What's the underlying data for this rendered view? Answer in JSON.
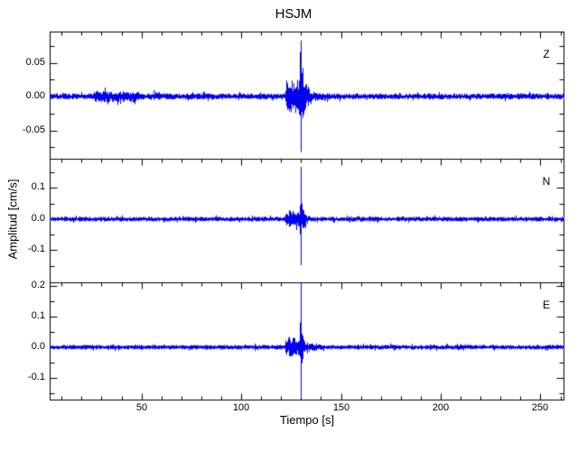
{
  "chart_data": {
    "type": "line",
    "title": "HSJM",
    "xlabel": "Tiempo [s]",
    "ylabel": "Amplitud [cm/s]",
    "trace_color": "#0202ee",
    "frame_color": "#000000",
    "background_color": "#ffffff",
    "x_range": [
      4,
      262
    ],
    "x_minor_step": 10,
    "x_major_ticks": [
      {
        "value": 50,
        "label": "50"
      },
      {
        "value": 100,
        "label": "100"
      },
      {
        "value": 150,
        "label": "150"
      },
      {
        "value": 200,
        "label": "200"
      },
      {
        "value": 250,
        "label": "250"
      }
    ],
    "event": {
      "p_arrival_s": 122,
      "s_arrival_s": 129.4,
      "coda_end_s": 172
    },
    "panels": [
      {
        "label": "Z",
        "ylim": [
          -0.092,
          0.096
        ],
        "minor_tick_step": 0.025,
        "major_ticks": [
          {
            "value": 0.05,
            "label": "0.05"
          },
          {
            "value": 0,
            "label": "0.00"
          },
          {
            "value": -0.05,
            "label": "-0.05"
          }
        ],
        "noise_amp": 0.0035,
        "post_noise_amp": 0.0042,
        "bumps": [
          {
            "t0": 26,
            "t1": 49,
            "amp": 0.0065
          },
          {
            "t0": 56,
            "t1": 59,
            "amp": 0.0055
          }
        ],
        "p_amp": 0.02,
        "s_peak": 0.055,
        "s_tau": 2.8,
        "coda_amp": 0.011,
        "coda_tau": 14,
        "spike": {
          "t": 130.0,
          "up": 0.083,
          "down": -0.082
        },
        "seed": 7
      },
      {
        "label": "N",
        "ylim": [
          -0.203,
          0.194
        ],
        "minor_tick_step": 0.05,
        "major_ticks": [
          {
            "value": 0.1,
            "label": "0.1"
          },
          {
            "value": 0,
            "label": "0.0"
          },
          {
            "value": -0.1,
            "label": "-0.1"
          }
        ],
        "noise_amp": 0.006,
        "post_noise_amp": 0.006,
        "bumps": [],
        "p_amp": 0.022,
        "s_peak": 0.062,
        "s_tau": 2.3,
        "coda_amp": 0.013,
        "coda_tau": 11,
        "spike": {
          "t": 129.8,
          "up": 0.168,
          "down": -0.148
        },
        "seed": 13
      },
      {
        "label": "E",
        "ylim": [
          -0.171,
          0.212
        ],
        "minor_tick_step": 0.05,
        "major_ticks": [
          {
            "value": 0.2,
            "label": "0.2"
          },
          {
            "value": 0.1,
            "label": "0.1"
          },
          {
            "value": 0,
            "label": "0.0"
          },
          {
            "value": -0.1,
            "label": "-0.1"
          }
        ],
        "noise_amp": 0.006,
        "post_noise_amp": 0.006,
        "bumps": [],
        "p_amp": 0.025,
        "s_peak": 0.068,
        "s_tau": 2.3,
        "coda_amp": 0.017,
        "coda_tau": 12,
        "spike": {
          "t": 129.9,
          "up": 0.205,
          "down": -0.16
        },
        "seed": 29
      }
    ]
  }
}
